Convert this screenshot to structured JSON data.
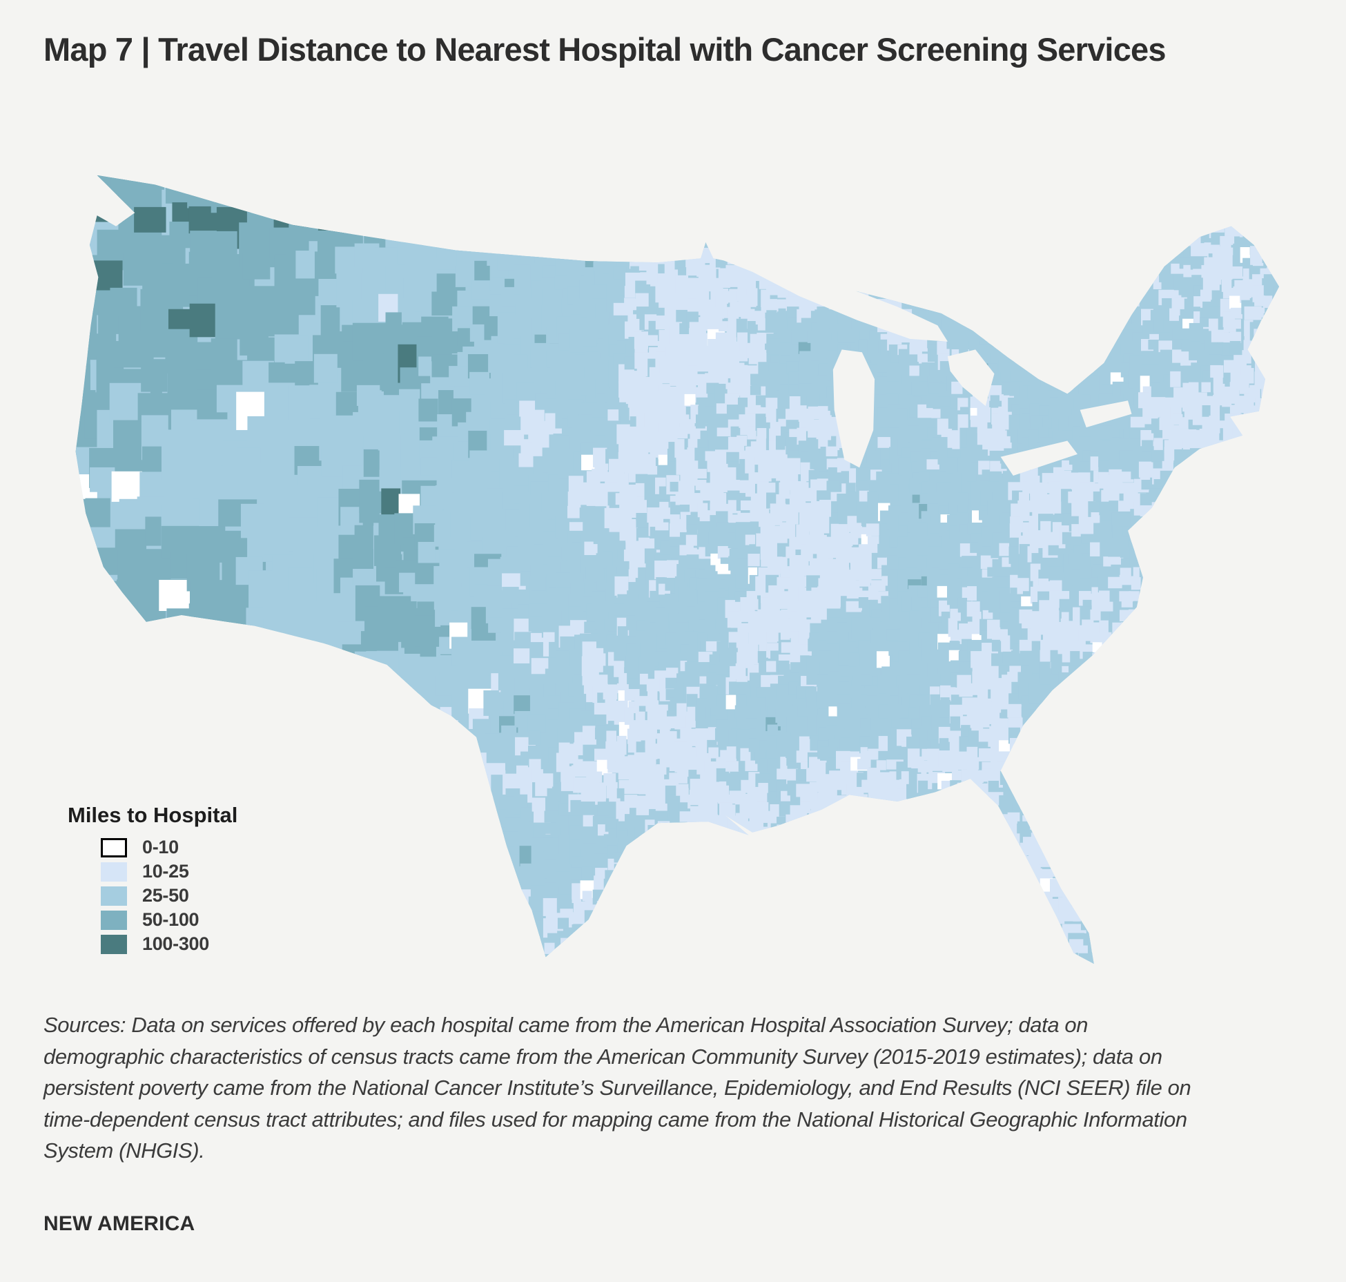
{
  "page": {
    "background": "#f4f4f2",
    "text_color": "#2d2d2d"
  },
  "title": "Map 7 |  Travel Distance to Nearest Hospital with Cancer Screening Services",
  "map": {
    "region": "Contiguous United States choropleth by census tract",
    "water_color": "#f4f4f2"
  },
  "legend": {
    "title": "Miles to Hospital",
    "items": [
      {
        "label": "0-10",
        "color": "#ffffff"
      },
      {
        "label": "10-25",
        "color": "#d6e5f7"
      },
      {
        "label": "25-50",
        "color": "#a5cde0"
      },
      {
        "label": "50-100",
        "color": "#7eb1c0"
      },
      {
        "label": "100-300",
        "color": "#4a7b7f"
      }
    ]
  },
  "sources": "Sources: Data on services offered by each hospital came from the American Hospital Association Survey; data on demographic characteristics of census tracts came from the American Community Survey (2015-2019 estimates); data on persistent poverty came from the National Cancer Institute’s Surveillance, Epidemiology, and End Results (NCI SEER) file on time-dependent census tract attributes; and files used for mapping came from the National Historical Geographic Information System (NHGIS).",
  "brand": "NEW AMERICA"
}
